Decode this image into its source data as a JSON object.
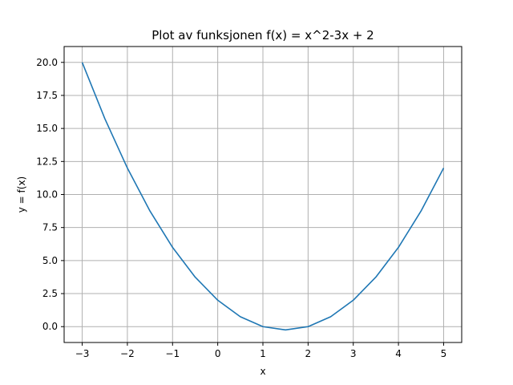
{
  "chart_data": {
    "type": "line",
    "title": "Plot av funksjonen f(x) = x^2-3x + 2",
    "xlabel": "x",
    "ylabel": "y = f(x)",
    "xlim": [
      -3.4,
      5.4
    ],
    "ylim": [
      -1.2,
      21.2
    ],
    "xticks": [
      -3,
      -2,
      -1,
      0,
      1,
      2,
      3,
      4,
      5
    ],
    "xtick_labels": [
      "−3",
      "−2",
      "−1",
      "0",
      "1",
      "2",
      "3",
      "4",
      "5"
    ],
    "yticks": [
      0,
      2.5,
      5,
      7.5,
      10,
      12.5,
      15,
      17.5,
      20
    ],
    "ytick_labels": [
      "0.0",
      "2.5",
      "5.0",
      "7.5",
      "10.0",
      "12.5",
      "15.0",
      "17.5",
      "20.0"
    ],
    "grid": true,
    "series": [
      {
        "color": "#1f77b4",
        "x": [
          -3,
          -2.5,
          -2,
          -1.5,
          -1,
          -0.5,
          0,
          0.5,
          1,
          1.5,
          2,
          2.5,
          3,
          3.5,
          4,
          4.5,
          5
        ],
        "y": [
          20,
          15.75,
          12,
          8.75,
          6,
          3.75,
          2,
          0.75,
          0,
          -0.25,
          0,
          0.75,
          2,
          3.75,
          6,
          8.75,
          12
        ]
      }
    ]
  }
}
